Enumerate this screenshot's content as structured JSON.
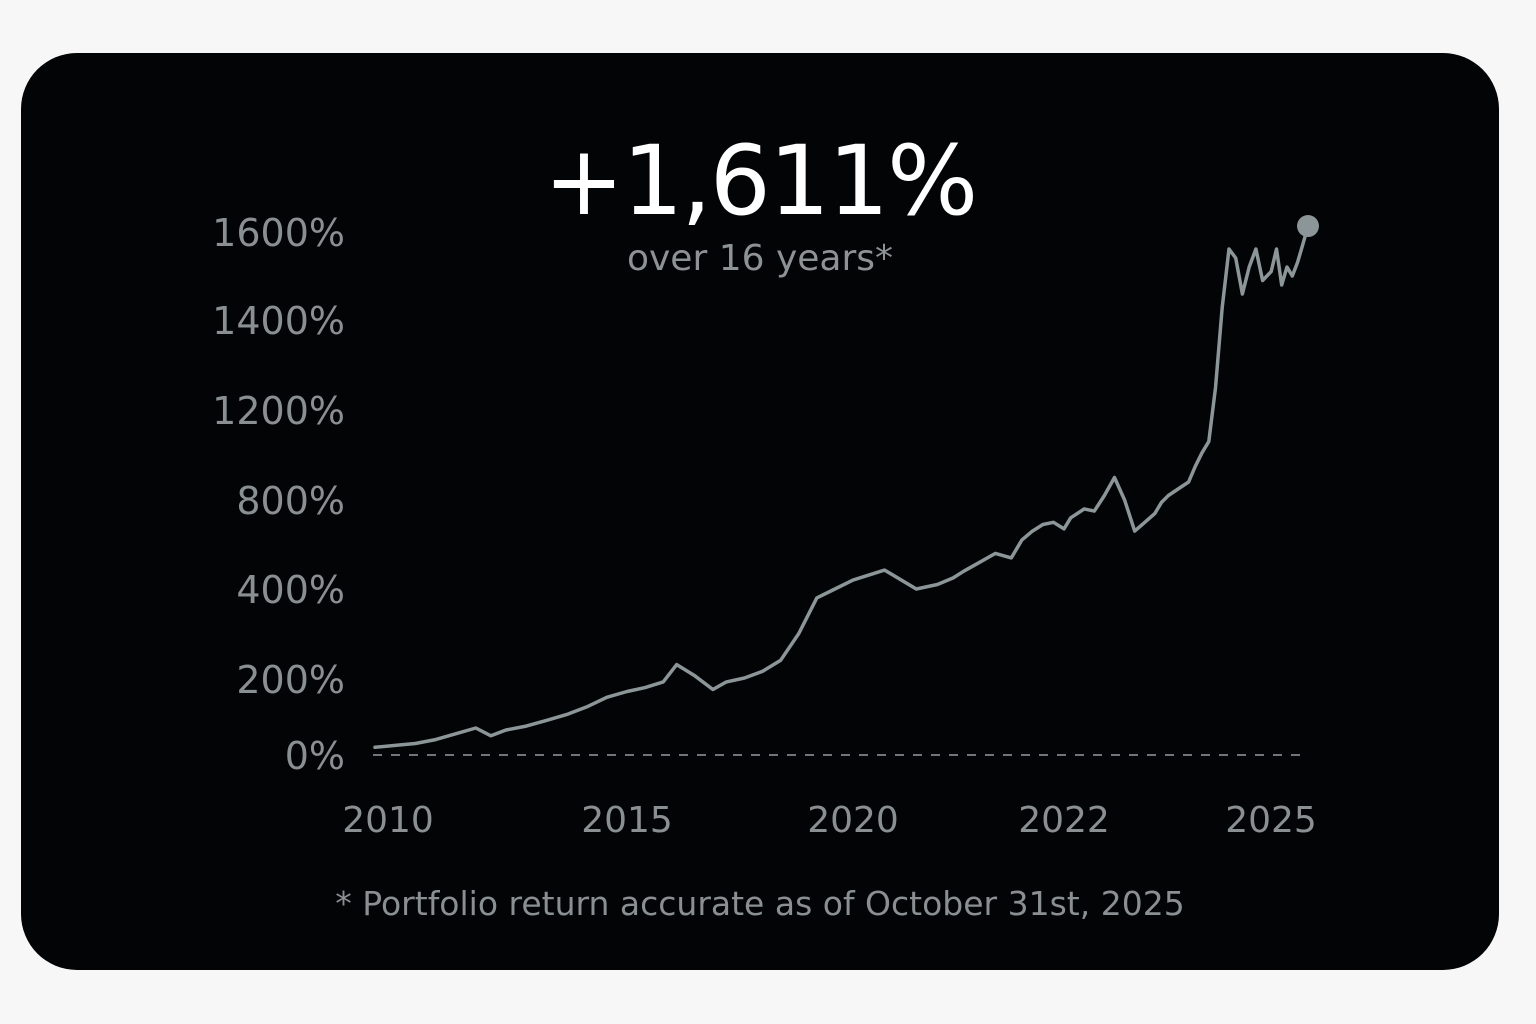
{
  "headline": {
    "value": "+1,611%",
    "subtitle": "over 16 years*"
  },
  "footnote": "* Portfolio return accurate as of October 31st, 2025",
  "colors": {
    "background": "#020406",
    "line": "#8c9597",
    "endpoint": "#8c9597",
    "baseline": "#6f7578",
    "text_muted": "#8a8f92",
    "headline": "#ffffff"
  },
  "chart_data": {
    "type": "line",
    "y_tick_labels": [
      "0%",
      "200%",
      "400%",
      "800%",
      "1200%",
      "1400%",
      "1600%"
    ],
    "x_tick_labels": [
      "2010",
      "2015",
      "2020",
      "2022",
      "2025"
    ],
    "ylim": [
      0,
      1611
    ],
    "grid": false,
    "baseline_dashed_at": 0,
    "series": [
      {
        "x": [
          2010.0,
          2010.4,
          2010.8,
          2011.2,
          2011.6,
          2012.0,
          2012.3,
          2012.6,
          2013.0,
          2013.4,
          2013.8,
          2014.2,
          2014.6,
          2015.0,
          2015.4,
          2015.8,
          2016.1,
          2016.5,
          2016.9,
          2017.2,
          2017.6,
          2018.0,
          2018.4,
          2018.8,
          2019.2,
          2019.6,
          2020.0,
          2020.3,
          2020.6,
          2020.8,
          2020.95,
          2021.05,
          2021.2,
          2021.35,
          2021.5,
          2021.6,
          2021.7,
          2021.8,
          2021.9,
          2022.0,
          2022.1,
          2022.2,
          2022.3,
          2022.45,
          2022.6,
          2022.75,
          2022.9,
          2023.05,
          2023.2,
          2023.35,
          2023.45,
          2023.55,
          2023.65,
          2023.75,
          2023.85,
          2023.95,
          2024.05,
          2024.15,
          2024.25,
          2024.35,
          2024.45,
          2024.55,
          2024.65,
          2024.75,
          2024.85,
          2024.95,
          2025.1,
          2025.2,
          2025.3,
          2025.4,
          2025.5,
          2025.6,
          2025.7,
          2025.8
        ],
        "y": [
          20,
          25,
          30,
          40,
          55,
          70,
          50,
          65,
          75,
          90,
          105,
          125,
          150,
          165,
          175,
          190,
          230,
          205,
          170,
          190,
          200,
          215,
          240,
          300,
          380,
          400,
          440,
          485,
          400,
          420,
          450,
          480,
          520,
          560,
          540,
          620,
          660,
          690,
          700,
          670,
          720,
          740,
          760,
          750,
          820,
          900,
          800,
          660,
          700,
          740,
          790,
          820,
          840,
          860,
          880,
          950,
          1010,
          1060,
          1250,
          1430,
          1560,
          1540,
          1460,
          1520,
          1560,
          1490,
          1510,
          1560,
          1480,
          1520,
          1500,
          1530,
          1570,
          1611
        ]
      }
    ]
  }
}
